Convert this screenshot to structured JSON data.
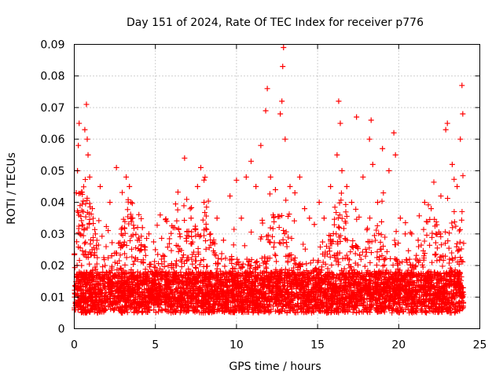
{
  "chart_data": {
    "type": "scatter",
    "title": "Day 151 of 2024, Rate Of TEC Index for receiver p776",
    "xlabel": "GPS time / hours",
    "ylabel": "ROTI / TECUs",
    "xlim": [
      0,
      25
    ],
    "ylim": [
      0,
      0.09
    ],
    "x_ticks": [
      0,
      5,
      10,
      15,
      20,
      25
    ],
    "x_tick_labels": [
      "0",
      "5",
      "10",
      "15",
      "20",
      "25"
    ],
    "y_ticks": [
      0,
      0.01,
      0.02,
      0.03,
      0.04,
      0.05,
      0.06,
      0.07,
      0.08,
      0.09
    ],
    "y_tick_labels": [
      "0",
      "0.01",
      "0.02",
      "0.03",
      "0.04",
      "0.05",
      "0.06",
      "0.07",
      "0.08",
      "0.09"
    ],
    "grid": true,
    "marker": "+",
    "marker_color": "#ff0000",
    "series": [
      {
        "name": "ROTI",
        "x": [
          0.05,
          0.12,
          0.2,
          0.25,
          0.3,
          0.35,
          0.45,
          0.55,
          0.65,
          0.75,
          0.8,
          0.85,
          0.95,
          1.1,
          1.3,
          1.6,
          1.9,
          2.2,
          2.6,
          2.9,
          3.2,
          3.4,
          3.5,
          3.6,
          3.9,
          4.2,
          4.6,
          5.0,
          5.3,
          5.7,
          6.1,
          6.5,
          6.8,
          7.2,
          7.6,
          7.8,
          8.0,
          8.4,
          8.8,
          9.2,
          9.6,
          10.0,
          10.3,
          10.6,
          10.9,
          11.2,
          11.5,
          11.8,
          11.9,
          12.1,
          12.4,
          12.7,
          12.8,
          12.85,
          12.9,
          13.0,
          13.3,
          13.6,
          13.9,
          14.2,
          14.5,
          14.8,
          15.1,
          15.4,
          15.8,
          16.2,
          16.3,
          16.4,
          16.5,
          16.8,
          17.1,
          17.4,
          17.8,
          18.2,
          18.3,
          18.4,
          18.7,
          19.0,
          19.4,
          19.7,
          19.8,
          20.1,
          20.4,
          20.8,
          21.2,
          21.6,
          22.0,
          22.3,
          22.6,
          22.9,
          23.0,
          23.3,
          23.6,
          23.8,
          23.9,
          23.95
        ],
        "y": [
          0.011,
          0.043,
          0.05,
          0.058,
          0.065,
          0.03,
          0.02,
          0.037,
          0.063,
          0.071,
          0.06,
          0.055,
          0.048,
          0.025,
          0.03,
          0.045,
          0.02,
          0.04,
          0.051,
          0.03,
          0.048,
          0.045,
          0.04,
          0.035,
          0.028,
          0.032,
          0.03,
          0.025,
          0.036,
          0.034,
          0.032,
          0.03,
          0.054,
          0.035,
          0.045,
          0.051,
          0.04,
          0.03,
          0.035,
          0.028,
          0.042,
          0.047,
          0.035,
          0.048,
          0.053,
          0.045,
          0.058,
          0.069,
          0.076,
          0.048,
          0.044,
          0.068,
          0.072,
          0.083,
          0.089,
          0.06,
          0.045,
          0.043,
          0.048,
          0.038,
          0.035,
          0.033,
          0.04,
          0.035,
          0.045,
          0.055,
          0.072,
          0.065,
          0.05,
          0.045,
          0.04,
          0.067,
          0.048,
          0.06,
          0.066,
          0.052,
          0.04,
          0.057,
          0.05,
          0.062,
          0.055,
          0.035,
          0.03,
          0.03,
          0.028,
          0.04,
          0.038,
          0.03,
          0.042,
          0.063,
          0.065,
          0.052,
          0.045,
          0.06,
          0.077,
          0.068
        ],
        "min_band": [
          0.004,
          0.011
        ],
        "typical_band": [
          0.008,
          0.02
        ]
      }
    ]
  }
}
